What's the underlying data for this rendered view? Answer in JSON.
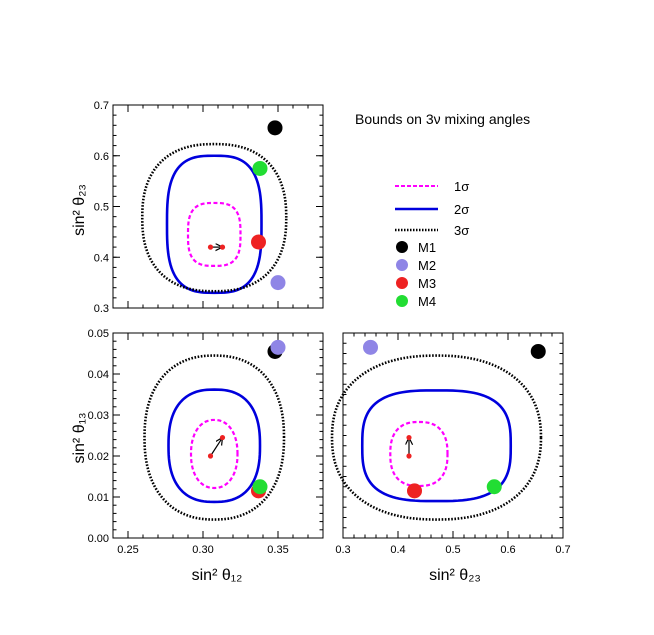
{
  "chart_data": {
    "type": "contour",
    "title": "Bounds on 3ν mixing angles",
    "legend": {
      "placement": "right",
      "contours": [
        {
          "label": "1σ",
          "color": "#ff00ff",
          "style": "dashed"
        },
        {
          "label": "2σ",
          "color": "#0000dd",
          "style": "solid"
        },
        {
          "label": "3σ",
          "color": "#000000",
          "style": "dotted"
        }
      ],
      "models": [
        {
          "label": "M1",
          "color": "#000000"
        },
        {
          "label": "M2",
          "color": "#8f85e6"
        },
        {
          "label": "M3",
          "color": "#ee2222"
        },
        {
          "label": "M4",
          "color": "#22dd33"
        }
      ]
    },
    "models": {
      "M1": {
        "s12": 0.348,
        "s23": 0.655,
        "s13": 0.0455
      },
      "M2": {
        "s12": 0.35,
        "s23": 0.35,
        "s13": 0.0465
      },
      "M3": {
        "s12": 0.337,
        "s23": 0.43,
        "s13": 0.0115
      },
      "M4": {
        "s12": 0.338,
        "s23": 0.575,
        "s13": 0.0125
      }
    },
    "best_fit": {
      "from": {
        "s12": 0.305,
        "s23": 0.42,
        "s13": 0.02
      },
      "to": {
        "s12": 0.313,
        "s23": 0.42,
        "s13": 0.0245
      }
    },
    "panels": [
      {
        "id": "s12-s23",
        "x_var": "s12",
        "y_var": "s23",
        "xlim": [
          0.24,
          0.38
        ],
        "ylim": [
          0.3,
          0.7
        ],
        "y_ticks": [
          "0.3",
          "0.4",
          "0.5",
          "0.6",
          "0.7"
        ],
        "y_tick_values": [
          0.3,
          0.4,
          0.5,
          0.6,
          0.7
        ],
        "ylabel": "sin² θ₂₃",
        "contours": [
          {
            "sigma": 1,
            "center": [
              0.3075,
              0.445
            ],
            "rx": 0.0175,
            "ry": 0.062,
            "n": 3
          },
          {
            "sigma": 2,
            "center": [
              0.3075,
              0.465
            ],
            "rx": 0.0315,
            "ry": 0.135,
            "n": 3
          },
          {
            "sigma": 3,
            "center": [
              0.3075,
              0.478
            ],
            "rx": 0.048,
            "ry": 0.145,
            "n": 2.4
          }
        ]
      },
      {
        "id": "s12-s13",
        "x_var": "s12",
        "y_var": "s13",
        "xlim": [
          0.24,
          0.38
        ],
        "ylim": [
          0.0,
          0.05
        ],
        "x_ticks": [
          "0.25",
          "0.30",
          "0.35"
        ],
        "x_tick_values": [
          0.25,
          0.3,
          0.35
        ],
        "y_ticks": [
          "0.00",
          "0.01",
          "0.02",
          "0.03",
          "0.04",
          "0.05"
        ],
        "y_tick_values": [
          0.0,
          0.01,
          0.02,
          0.03,
          0.04,
          0.05
        ],
        "xlabel": "sin² θ₁₂",
        "ylabel": "sin² θ₁₃",
        "contours": [
          {
            "sigma": 1,
            "center": [
              0.3075,
              0.0205
            ],
            "rx": 0.0155,
            "ry": 0.0083,
            "n": 2.2
          },
          {
            "sigma": 2,
            "center": [
              0.3075,
              0.0225
            ],
            "rx": 0.0305,
            "ry": 0.0137,
            "n": 2.5
          },
          {
            "sigma": 3,
            "center": [
              0.3075,
              0.0245
            ],
            "rx": 0.0465,
            "ry": 0.02,
            "n": 2.3
          }
        ]
      },
      {
        "id": "s23-s13",
        "x_var": "s23",
        "y_var": "s13",
        "xlim": [
          0.3,
          0.7
        ],
        "ylim": [
          0.0,
          0.05
        ],
        "x_ticks": [
          "0.3",
          "0.4",
          "0.5",
          "0.6",
          "0.7"
        ],
        "x_tick_values": [
          0.3,
          0.4,
          0.5,
          0.6,
          0.7
        ],
        "xlabel": "sin² θ₂₃",
        "contours": [
          {
            "sigma": 1,
            "center": [
              0.438,
              0.0205
            ],
            "rx": 0.052,
            "ry": 0.0078,
            "n": 2.5
          },
          {
            "sigma": 2,
            "center": [
              0.47,
              0.0225
            ],
            "rx": 0.135,
            "ry": 0.0135,
            "n": 3
          },
          {
            "sigma": 3,
            "center": [
              0.47,
              0.0245
            ],
            "rx": 0.19,
            "ry": 0.02,
            "n": 2.3
          }
        ]
      }
    ]
  }
}
